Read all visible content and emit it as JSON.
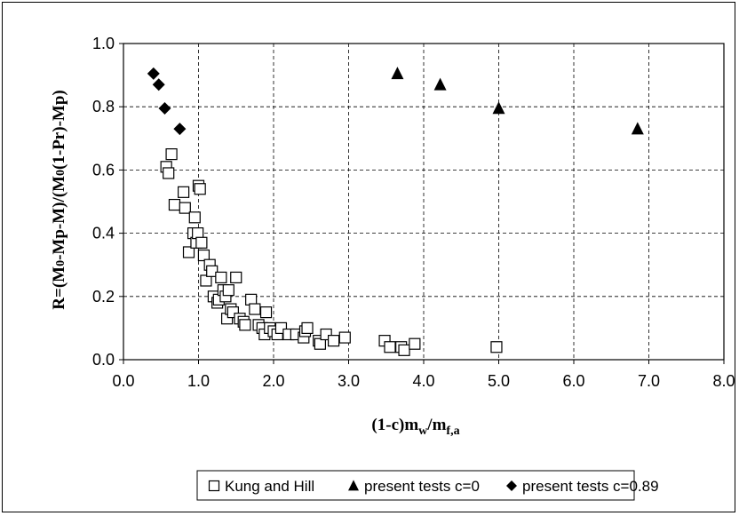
{
  "chart_data": {
    "type": "scatter",
    "xlabel": "(1-c)m",
    "xlabel_sub1": "w",
    "xlabel_mid": "/m",
    "xlabel_sub2": "f,a",
    "ylabel": "R=(M0-Mp-M)/(M0(1-Pr)-Mp)",
    "ylabel_parts": [
      "R=(M",
      "0",
      "-Mp-M)/(M",
      "0",
      "(1-Pr)-Mp)"
    ],
    "xlim": [
      0,
      8
    ],
    "ylim": [
      0,
      1
    ],
    "x_ticks": [
      0,
      1,
      2,
      3,
      4,
      5,
      6,
      7,
      8
    ],
    "x_tick_labels": [
      "0.0",
      "1.0",
      "2.0",
      "3.0",
      "4.0",
      "5.0",
      "6.0",
      "7.0",
      "8.0"
    ],
    "y_ticks": [
      0,
      0.2,
      0.4,
      0.6,
      0.8,
      1.0
    ],
    "y_tick_labels": [
      "0.0",
      "0.2",
      "0.4",
      "0.6",
      "0.8",
      "1.0"
    ],
    "grid": true,
    "legend_position": "bottom",
    "series": [
      {
        "name": "Kung and Hill",
        "marker": "square",
        "points": [
          [
            0.57,
            0.61
          ],
          [
            0.6,
            0.59
          ],
          [
            0.64,
            0.65
          ],
          [
            0.68,
            0.49
          ],
          [
            0.8,
            0.53
          ],
          [
            0.82,
            0.48
          ],
          [
            0.87,
            0.34
          ],
          [
            0.93,
            0.4
          ],
          [
            0.95,
            0.45
          ],
          [
            0.97,
            0.37
          ],
          [
            0.99,
            0.4
          ],
          [
            1.0,
            0.55
          ],
          [
            1.02,
            0.54
          ],
          [
            1.04,
            0.37
          ],
          [
            1.07,
            0.33
          ],
          [
            1.1,
            0.25
          ],
          [
            1.15,
            0.3
          ],
          [
            1.18,
            0.28
          ],
          [
            1.2,
            0.2
          ],
          [
            1.25,
            0.18
          ],
          [
            1.27,
            0.19
          ],
          [
            1.3,
            0.26
          ],
          [
            1.33,
            0.22
          ],
          [
            1.36,
            0.2
          ],
          [
            1.38,
            0.13
          ],
          [
            1.4,
            0.22
          ],
          [
            1.43,
            0.16
          ],
          [
            1.46,
            0.15
          ],
          [
            1.5,
            0.26
          ],
          [
            1.55,
            0.13
          ],
          [
            1.6,
            0.12
          ],
          [
            1.62,
            0.11
          ],
          [
            1.7,
            0.19
          ],
          [
            1.75,
            0.16
          ],
          [
            1.8,
            0.11
          ],
          [
            1.85,
            0.1
          ],
          [
            1.88,
            0.08
          ],
          [
            1.9,
            0.15
          ],
          [
            1.95,
            0.1
          ],
          [
            2.0,
            0.09
          ],
          [
            2.05,
            0.08
          ],
          [
            2.1,
            0.1
          ],
          [
            2.2,
            0.08
          ],
          [
            2.3,
            0.08
          ],
          [
            2.4,
            0.07
          ],
          [
            2.42,
            0.09
          ],
          [
            2.45,
            0.1
          ],
          [
            2.6,
            0.06
          ],
          [
            2.62,
            0.05
          ],
          [
            2.7,
            0.08
          ],
          [
            2.8,
            0.06
          ],
          [
            2.95,
            0.07
          ],
          [
            3.48,
            0.06
          ],
          [
            3.55,
            0.04
          ],
          [
            3.7,
            0.04
          ],
          [
            3.74,
            0.03
          ],
          [
            3.88,
            0.05
          ],
          [
            4.97,
            0.04
          ]
        ]
      },
      {
        "name": "present tests c=0",
        "marker": "triangle",
        "points": [
          [
            3.65,
            0.905
          ],
          [
            4.22,
            0.87
          ],
          [
            5.0,
            0.795
          ],
          [
            6.85,
            0.73
          ]
        ]
      },
      {
        "name": "present tests c=0.89",
        "marker": "diamond",
        "points": [
          [
            0.4,
            0.905
          ],
          [
            0.47,
            0.87
          ],
          [
            0.55,
            0.795
          ],
          [
            0.75,
            0.73
          ]
        ]
      }
    ],
    "legend_items": [
      {
        "marker": "square",
        "label": "Kung and Hill"
      },
      {
        "marker": "triangle",
        "label": "present tests c=0"
      },
      {
        "marker": "diamond",
        "label": "present tests c=0.89"
      }
    ]
  }
}
